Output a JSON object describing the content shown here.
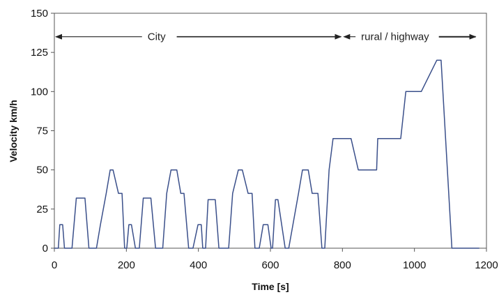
{
  "chart_data": {
    "type": "line",
    "title": "",
    "xlabel": "Time [s]",
    "ylabel": "Velocity km/h",
    "xlim": [
      0,
      1200
    ],
    "ylim": [
      0,
      150
    ],
    "x_ticks": [
      0,
      200,
      400,
      600,
      800,
      1000,
      1200
    ],
    "y_ticks": [
      0,
      25,
      50,
      75,
      100,
      125,
      150
    ],
    "grid": false,
    "legend": "none",
    "line_color": "#3a4f8a",
    "series": [
      {
        "x": [
          0,
          11,
          15,
          23,
          28,
          49,
          61,
          85,
          96,
          117,
          128,
          144,
          155,
          163,
          178,
          188,
          195,
          201,
          207,
          214,
          225,
          236,
          247,
          268,
          281,
          301,
          312,
          324,
          340,
          351,
          360,
          373,
          385,
          399,
          408,
          412,
          420,
          427,
          447,
          457,
          484,
          495,
          511,
          522,
          538,
          549,
          557,
          569,
          580,
          593,
          602,
          606,
          614,
          621,
          641,
          651,
          678,
          689,
          705,
          716,
          732,
          743,
          751,
          763,
          774,
          800,
          824,
          844,
          895,
          898,
          962,
          976,
          1019,
          1062,
          1074,
          1104,
          1120,
          1137,
          1169,
          1180
        ],
        "y": [
          0,
          0,
          15,
          15,
          0,
          0,
          32,
          32,
          0,
          0,
          15,
          35,
          50,
          50,
          35,
          35,
          0,
          0,
          15,
          15,
          0,
          0,
          32,
          32,
          0,
          0,
          35,
          50,
          50,
          35,
          35,
          0,
          0,
          15,
          15,
          0,
          0,
          31,
          31,
          0,
          0,
          35,
          50,
          50,
          35,
          35,
          0,
          0,
          15,
          15,
          0,
          0,
          31,
          31,
          0,
          0,
          35,
          50,
          50,
          35,
          35,
          0,
          0,
          50,
          70,
          70,
          70,
          50,
          50,
          70,
          70,
          100,
          100,
          120,
          120,
          0,
          0,
          0,
          0,
          0
        ]
      }
    ],
    "annotations": [
      {
        "text": "City",
        "x_start": 0,
        "x_end": 800,
        "y": 135
      },
      {
        "text": "rural / highway",
        "x_start": 800,
        "x_end": 1170,
        "y": 135
      }
    ]
  }
}
